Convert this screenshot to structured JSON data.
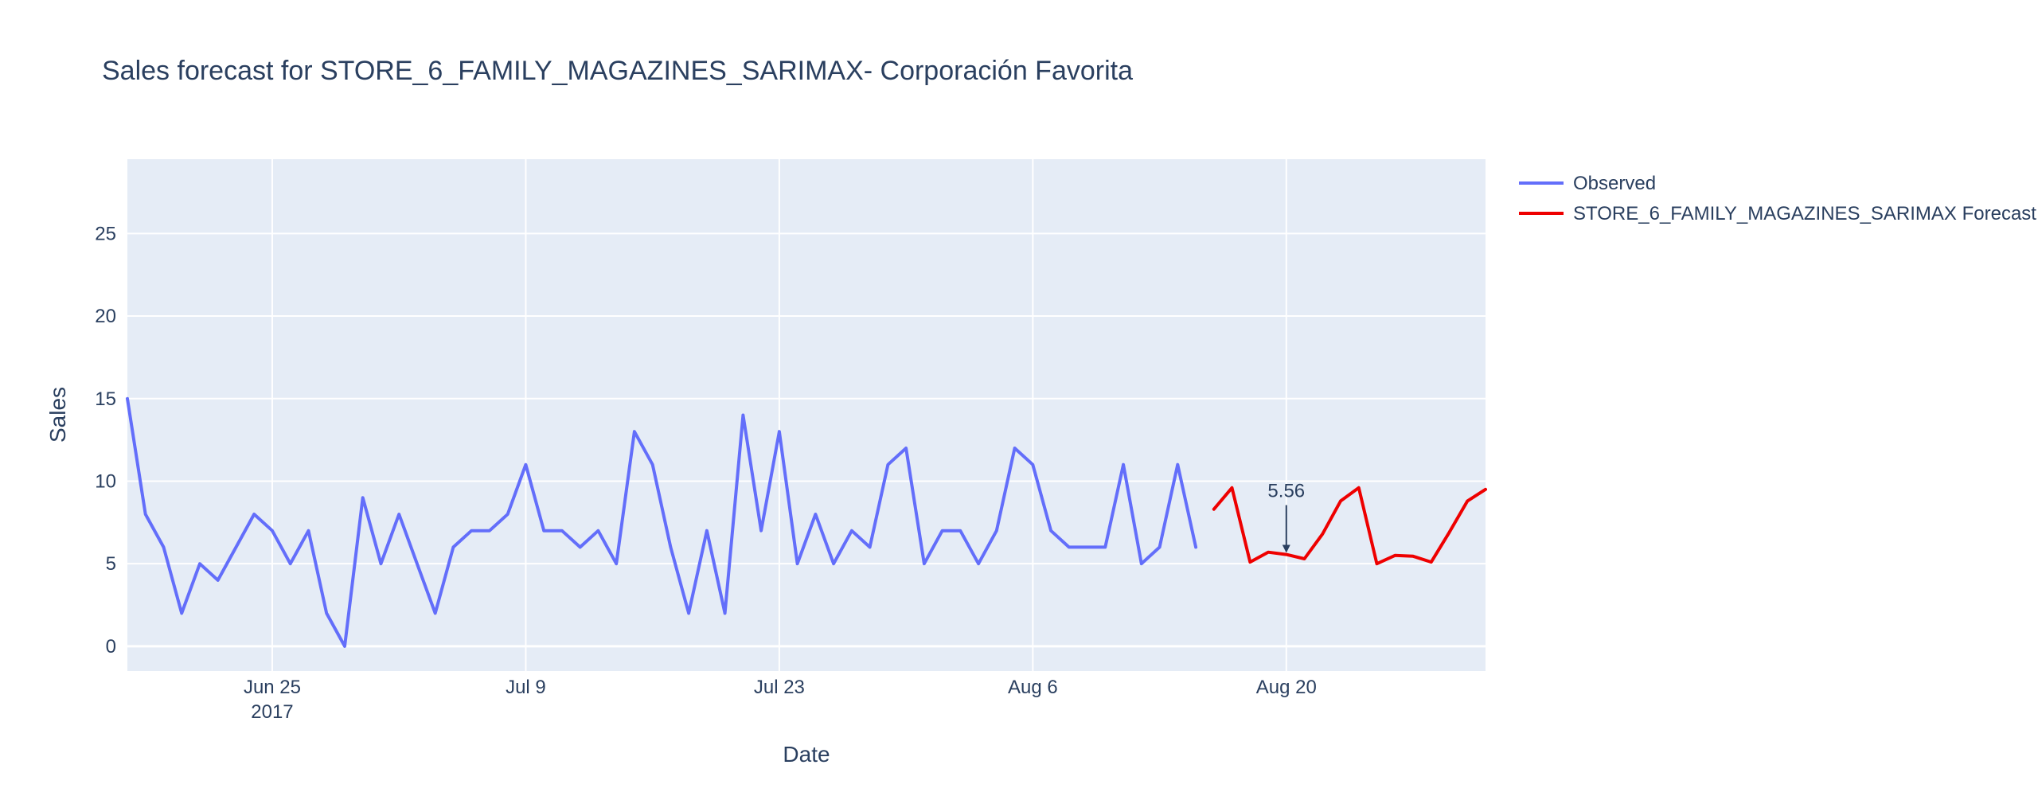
{
  "chart_data": {
    "type": "line",
    "title": "Sales forecast for STORE_6_FAMILY_MAGAZINES_SARIMAX- Corporación Favorita",
    "xlabel": "Date",
    "ylabel": "Sales",
    "ylim": [
      -1.5,
      29.5
    ],
    "xlim": [
      "2017-06-17",
      "2017-08-31"
    ],
    "x_ticks": [
      {
        "date": "2017-06-25",
        "label": "Jun 25",
        "sublabel": "2017"
      },
      {
        "date": "2017-07-09",
        "label": "Jul 9",
        "sublabel": ""
      },
      {
        "date": "2017-07-23",
        "label": "Jul 23",
        "sublabel": ""
      },
      {
        "date": "2017-08-06",
        "label": "Aug 6",
        "sublabel": ""
      },
      {
        "date": "2017-08-20",
        "label": "Aug 20",
        "sublabel": ""
      }
    ],
    "y_ticks": [
      0,
      5,
      10,
      15,
      20,
      25
    ],
    "grid": true,
    "legend_position": "top-right",
    "series": [
      {
        "name": "Observed",
        "color": "#636efa",
        "x": [
          "2017-06-17",
          "2017-06-18",
          "2017-06-19",
          "2017-06-20",
          "2017-06-21",
          "2017-06-22",
          "2017-06-23",
          "2017-06-24",
          "2017-06-25",
          "2017-06-26",
          "2017-06-27",
          "2017-06-28",
          "2017-06-29",
          "2017-06-30",
          "2017-07-01",
          "2017-07-02",
          "2017-07-03",
          "2017-07-04",
          "2017-07-05",
          "2017-07-06",
          "2017-07-07",
          "2017-07-08",
          "2017-07-09",
          "2017-07-10",
          "2017-07-11",
          "2017-07-12",
          "2017-07-13",
          "2017-07-14",
          "2017-07-15",
          "2017-07-16",
          "2017-07-17",
          "2017-07-18",
          "2017-07-19",
          "2017-07-20",
          "2017-07-21",
          "2017-07-22",
          "2017-07-23",
          "2017-07-24",
          "2017-07-25",
          "2017-07-26",
          "2017-07-27",
          "2017-07-28",
          "2017-07-29",
          "2017-07-30",
          "2017-07-31",
          "2017-08-01",
          "2017-08-02",
          "2017-08-03",
          "2017-08-04",
          "2017-08-05",
          "2017-08-06",
          "2017-08-07",
          "2017-08-08",
          "2017-08-09",
          "2017-08-10",
          "2017-08-11",
          "2017-08-12",
          "2017-08-13",
          "2017-08-14",
          "2017-08-15"
        ],
        "values": [
          15,
          8,
          6,
          2,
          5,
          4,
          6,
          8,
          7,
          5,
          7,
          2,
          0,
          9,
          5,
          8,
          5,
          2,
          6,
          7,
          7,
          8,
          11,
          7,
          7,
          6,
          7,
          5,
          13,
          11,
          6,
          2,
          7,
          2,
          14,
          7,
          13,
          5,
          8,
          5,
          7,
          6,
          11,
          12,
          5,
          7,
          7,
          5,
          7,
          12,
          11,
          7,
          6,
          6,
          6,
          11,
          5,
          6,
          11,
          6
        ]
      },
      {
        "name": "STORE_6_FAMILY_MAGAZINES_SARIMAX Forecast",
        "color": "#ee0000",
        "x": [
          "2017-08-16",
          "2017-08-17",
          "2017-08-18",
          "2017-08-19",
          "2017-08-20",
          "2017-08-21",
          "2017-08-22",
          "2017-08-23",
          "2017-08-24",
          "2017-08-25",
          "2017-08-26",
          "2017-08-27",
          "2017-08-28",
          "2017-08-29",
          "2017-08-30",
          "2017-08-31"
        ],
        "values": [
          8.3,
          9.6,
          5.1,
          5.7,
          5.56,
          5.3,
          6.8,
          8.8,
          9.6,
          5.0,
          5.5,
          5.45,
          5.1,
          6.9,
          8.8,
          9.5
        ]
      }
    ],
    "annotations": [
      {
        "date": "2017-08-20",
        "value": 5.56,
        "text": "5.56"
      }
    ]
  }
}
